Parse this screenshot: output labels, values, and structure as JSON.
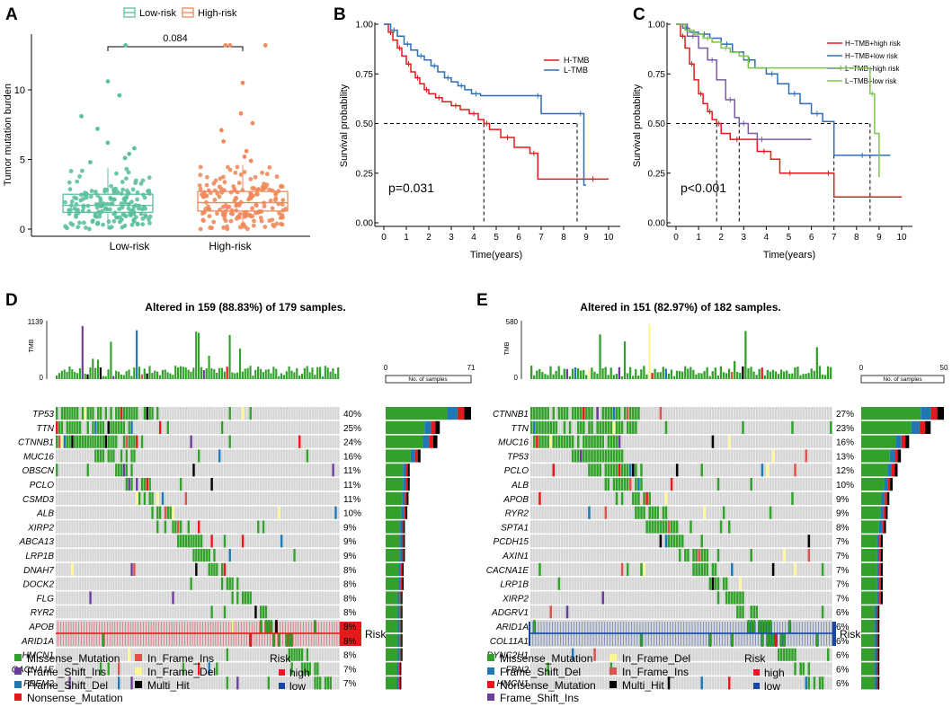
{
  "colors": {
    "missense": "#33A02C",
    "frame_shift_del": "#1F78B4",
    "frame_shift_ins": "#6A3D9A",
    "nonsense": "#E31A1C",
    "in_frame_ins": "#D9534F",
    "in_frame_del": "#FFF68F",
    "multi_hit": "#000000",
    "low_risk": "#5CC0A0",
    "high_risk": "#F08A5B",
    "h_tmb": "#E41A1C",
    "l_tmb": "#2C6FB6",
    "h_tmb_high": "#E41A1C",
    "h_tmb_low": "#2C6FB6",
    "l_tmb_high": "#7B5AA6",
    "l_tmb_low": "#7CC44E",
    "risk_high": "#E41A1C",
    "risk_low": "#1747A0",
    "grey_cell": "#D5D5D5"
  },
  "panels": {
    "a": "A",
    "b": "B",
    "c": "C",
    "d": "D",
    "e": "E"
  },
  "chart_data": [
    {
      "id": "A",
      "type": "box",
      "ylabel": "Tumor mutation burden",
      "categories": [
        "Low-risk",
        "High-risk"
      ],
      "legend": [
        "Low-risk",
        "High-risk"
      ],
      "ylim": [
        0,
        14
      ],
      "yticks": [
        0,
        5,
        10
      ],
      "pvalue": "0.084",
      "boxes": [
        {
          "name": "Low-risk",
          "q1": 1.2,
          "median": 1.7,
          "q3": 2.5,
          "whisker_low": 0,
          "whisker_high": 4.4,
          "outliers": [
            13.2,
            10.6,
            9.6,
            8.1,
            7.2,
            6.2,
            5.8,
            5.4,
            5.1,
            4.8
          ]
        },
        {
          "name": "High-risk",
          "q1": 1.3,
          "median": 1.9,
          "q3": 2.7,
          "whisker_low": 0,
          "whisker_high": 4.6,
          "outliers": [
            13.2,
            13.2,
            13.2,
            10.5,
            8.3,
            7.6,
            7.1,
            6.3,
            5.6,
            5.2,
            4.9
          ]
        }
      ]
    },
    {
      "id": "B",
      "type": "line",
      "xlabel": "Time(years)",
      "ylabel": "Survival probability",
      "xlim": [
        0,
        10
      ],
      "ylim": [
        0,
        1
      ],
      "xticks": [
        0,
        1,
        2,
        3,
        4,
        5,
        6,
        7,
        8,
        9,
        10
      ],
      "yticks": [
        "0.00",
        "0.25",
        "0.50",
        "0.75",
        "1.00"
      ],
      "pvalue": "p=0.031",
      "median_times": [
        4.45,
        8.6
      ],
      "series": [
        {
          "name": "H-TMB",
          "x": [
            0,
            0.2,
            0.4,
            0.6,
            0.8,
            1.0,
            1.2,
            1.4,
            1.6,
            1.8,
            2.0,
            2.3,
            2.6,
            3.0,
            3.4,
            3.8,
            4.2,
            4.45,
            4.7,
            5.2,
            5.8,
            6.5,
            6.85,
            8.6,
            10.0
          ],
          "y": [
            1.0,
            0.96,
            0.92,
            0.88,
            0.84,
            0.8,
            0.76,
            0.73,
            0.7,
            0.67,
            0.65,
            0.63,
            0.61,
            0.59,
            0.57,
            0.55,
            0.52,
            0.5,
            0.47,
            0.43,
            0.38,
            0.35,
            0.22,
            0.22,
            0.22
          ]
        },
        {
          "name": "L-TMB",
          "x": [
            0,
            0.3,
            0.6,
            0.9,
            1.2,
            1.5,
            1.8,
            2.1,
            2.4,
            2.7,
            3.0,
            3.3,
            3.6,
            3.9,
            4.3,
            6.7,
            7.0,
            8.6,
            8.9,
            9.0
          ],
          "y": [
            1.0,
            0.97,
            0.94,
            0.9,
            0.87,
            0.84,
            0.82,
            0.79,
            0.76,
            0.73,
            0.71,
            0.69,
            0.67,
            0.65,
            0.64,
            0.64,
            0.55,
            0.55,
            0.19,
            0.19
          ]
        }
      ]
    },
    {
      "id": "C",
      "type": "line",
      "xlabel": "Time(years)",
      "ylabel": "Survival probability",
      "xlim": [
        0,
        10
      ],
      "ylim": [
        0,
        1
      ],
      "xticks": [
        0,
        1,
        2,
        3,
        4,
        5,
        6,
        7,
        8,
        9,
        10
      ],
      "yticks": [
        "0.00",
        "0.25",
        "0.50",
        "0.75",
        "1.00"
      ],
      "pvalue": "p<0.001",
      "median_times": [
        1.8,
        2.8,
        7.0,
        8.6
      ],
      "series": [
        {
          "name": "H−TMB+high risk",
          "x": [
            0,
            0.2,
            0.4,
            0.6,
            0.8,
            1.0,
            1.2,
            1.4,
            1.6,
            1.8,
            2.0,
            2.4,
            3.0,
            3.6,
            4.2,
            4.6,
            5.5,
            6.5,
            7.0,
            10.0
          ],
          "y": [
            1.0,
            0.94,
            0.88,
            0.8,
            0.72,
            0.65,
            0.6,
            0.56,
            0.52,
            0.5,
            0.45,
            0.42,
            0.42,
            0.36,
            0.32,
            0.25,
            0.25,
            0.25,
            0.13,
            0.13
          ]
        },
        {
          "name": "H−TMB+low risk",
          "x": [
            0,
            0.3,
            0.6,
            1.0,
            1.5,
            2.0,
            2.5,
            3.0,
            3.5,
            4.0,
            4.5,
            5.0,
            5.5,
            6.0,
            6.5,
            7.0,
            9.5
          ],
          "y": [
            1.0,
            0.98,
            0.96,
            0.95,
            0.93,
            0.9,
            0.86,
            0.82,
            0.78,
            0.75,
            0.7,
            0.65,
            0.6,
            0.55,
            0.51,
            0.34,
            0.34
          ]
        },
        {
          "name": "L−TMB+high risk",
          "x": [
            0,
            0.5,
            1.0,
            1.4,
            1.8,
            2.2,
            2.6,
            2.8,
            3.2,
            3.6,
            4.0,
            6.0
          ],
          "y": [
            1.0,
            0.94,
            0.88,
            0.82,
            0.72,
            0.62,
            0.53,
            0.5,
            0.45,
            0.42,
            0.42,
            0.42
          ]
        },
        {
          "name": "L−TMB+low risk",
          "x": [
            0,
            0.4,
            0.8,
            1.2,
            1.6,
            2.0,
            2.4,
            2.8,
            3.2,
            6.0,
            8.6,
            8.6,
            8.8,
            9.0
          ],
          "y": [
            1.0,
            0.97,
            0.95,
            0.93,
            0.91,
            0.88,
            0.86,
            0.84,
            0.78,
            0.78,
            0.78,
            0.65,
            0.45,
            0.23
          ]
        }
      ]
    },
    {
      "id": "D",
      "type": "heatmap",
      "title": "Altered in 159 (88.83%) of 179 samples.",
      "tmb_label": "TMB",
      "tmb_max": "1139",
      "tmb_min": "0",
      "bar_axis_min": "0",
      "bar_axis_max": "71",
      "bar_axis_label": "No. of samples",
      "risk_label": "Risk",
      "risk_group": "high",
      "genes": [
        "TP53",
        "TTN",
        "CTNNB1",
        "MUC16",
        "OBSCN",
        "PCLO",
        "CSMD3",
        "ALB",
        "XIRP2",
        "ABCA13",
        "LRP1B",
        "DNAH7",
        "DOCK2",
        "FLG",
        "RYR2",
        "APOB",
        "ARID1A",
        "HMCN1",
        "CACNA1E",
        "FREM2"
      ],
      "percentages": [
        "40%",
        "25%",
        "24%",
        "16%",
        "11%",
        "11%",
        "11%",
        "10%",
        "9%",
        "9%",
        "9%",
        "8%",
        "8%",
        "8%",
        "8%",
        "8%",
        "8%",
        "8%",
        "7%",
        "7%"
      ],
      "counts": [
        71,
        45,
        43,
        29,
        20,
        20,
        19,
        18,
        16,
        16,
        16,
        15,
        15,
        14,
        14,
        14,
        14,
        14,
        13,
        13
      ]
    },
    {
      "id": "E",
      "type": "heatmap",
      "title": "Altered in 151 (82.97%) of 182 samples.",
      "tmb_label": "TMB",
      "tmb_max": "580",
      "tmb_min": "0",
      "bar_axis_min": "0",
      "bar_axis_max": "50",
      "bar_axis_label": "No. of samples",
      "risk_label": "Risk",
      "risk_group": "low",
      "genes": [
        "CTNNB1",
        "TTN",
        "MUC16",
        "TP53",
        "PCLO",
        "ALB",
        "APOB",
        "RYR2",
        "SPTA1",
        "PCDH15",
        "AXIN1",
        "CACNA1E",
        "LRP1B",
        "XIRP2",
        "ADGRV1",
        "ARID1A",
        "COL11A1",
        "DYNC2H1",
        "FBN2",
        "HMCN1"
      ],
      "percentages": [
        "27%",
        "23%",
        "16%",
        "13%",
        "12%",
        "10%",
        "9%",
        "9%",
        "8%",
        "7%",
        "7%",
        "7%",
        "7%",
        "7%",
        "6%",
        "6%",
        "6%",
        "6%",
        "6%",
        "6%"
      ],
      "counts": [
        50,
        42,
        29,
        24,
        22,
        19,
        17,
        16,
        15,
        13,
        13,
        13,
        13,
        13,
        11,
        11,
        11,
        11,
        11,
        11
      ]
    }
  ],
  "legend_d": {
    "col1": [
      "Missense_Mutation",
      "Frame_Shift_Ins",
      "Frame_Shift_Del",
      "Nonsense_Mutation"
    ],
    "col2": [
      "In_Frame_Ins",
      "In_Frame_Del",
      "Multi_Hit"
    ],
    "risk_title": "Risk",
    "risk_items": [
      "high",
      "low"
    ]
  },
  "legend_e": {
    "col1": [
      "Missense_Mutation",
      "Frame_Shift_Del",
      "Nonsense_Mutation",
      "Frame_Shift_Ins"
    ],
    "col2": [
      "In_Frame_Del",
      "In_Frame_Ins",
      "Multi_Hit"
    ],
    "risk_title": "Risk",
    "risk_items": [
      "high",
      "low"
    ]
  }
}
